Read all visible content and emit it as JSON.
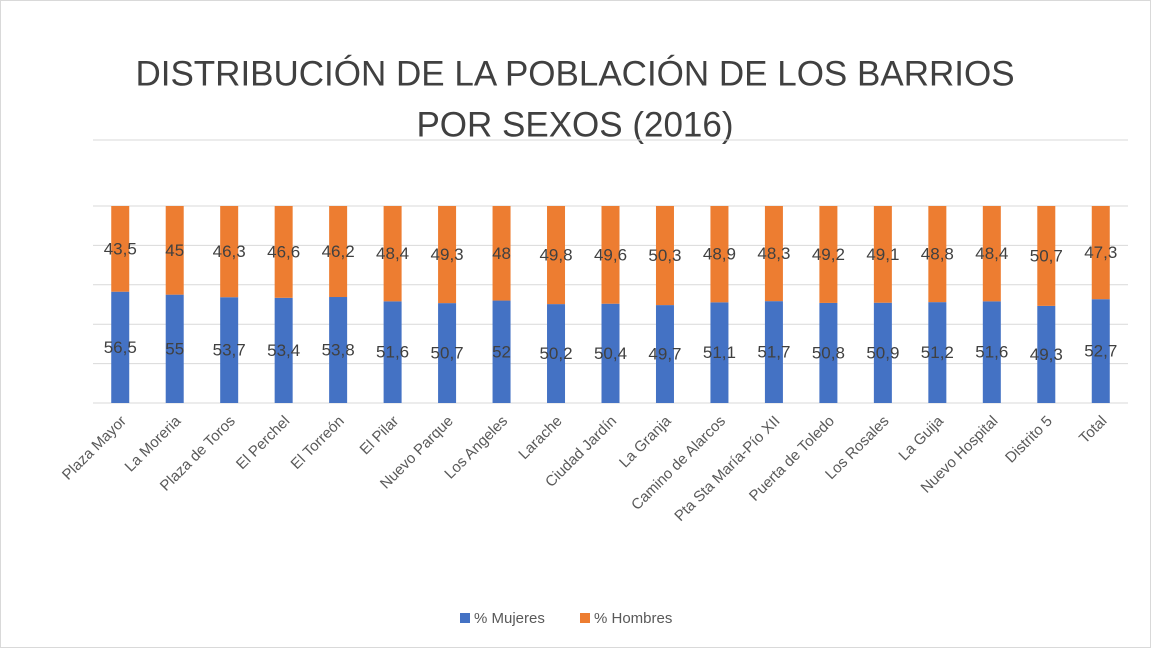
{
  "chart_data": {
    "type": "stacked_bar",
    "title": [
      "DISTRIBUCIÓN DE LA POBLACIÓN DE LOS BARRIOS",
      "POR SEXOS (2016)"
    ],
    "categories": [
      "Plaza Mayor",
      "La Moreria",
      "Plaza de Toros",
      "El Perchel",
      "El Torreón",
      "El Pilar",
      "Nuevo Parque",
      "Los Angeles",
      "Larache",
      "Ciudad Jardín",
      "La Granja",
      "Camino de Alarcos",
      "Pta Sta María-Pío XII",
      "Puerta de Toledo",
      "Los Rosales",
      "La Guija",
      "Nuevo Hospital",
      "Distrito 5",
      "Total"
    ],
    "series": [
      {
        "name": "% Mujeres",
        "color": "#4472c4",
        "values": [
          56.5,
          55,
          53.7,
          53.4,
          53.8,
          51.6,
          50.7,
          52,
          50.2,
          50.4,
          49.7,
          51.1,
          51.7,
          50.8,
          50.9,
          51.2,
          51.6,
          49.3,
          52.7
        ],
        "value_labels": [
          "56,5",
          "55",
          "53,7",
          "53,4",
          "53,8",
          "51,6",
          "50,7",
          "52",
          "50,2",
          "50,4",
          "49,7",
          "51,1",
          "51,7",
          "50,8",
          "50,9",
          "51,2",
          "51,6",
          "49,3",
          "52,7"
        ]
      },
      {
        "name": "% Hombres",
        "color": "#ed7d31",
        "values": [
          43.5,
          45,
          46.3,
          46.6,
          46.2,
          48.4,
          49.3,
          48,
          49.8,
          49.6,
          50.3,
          48.9,
          48.3,
          49.2,
          49.1,
          48.8,
          48.4,
          50.7,
          47.3
        ],
        "value_labels": [
          "43,5",
          "45",
          "46,3",
          "46,6",
          "46,2",
          "48,4",
          "49,3",
          "48",
          "49,8",
          "49,6",
          "50,3",
          "48,9",
          "48,3",
          "49,2",
          "49,1",
          "48,8",
          "48,4",
          "50,7",
          "47,3"
        ]
      }
    ],
    "ylim": [
      0,
      100
    ],
    "yticks": [
      0,
      20,
      40,
      60,
      80,
      100
    ],
    "grid": true,
    "legend": "bottom"
  }
}
